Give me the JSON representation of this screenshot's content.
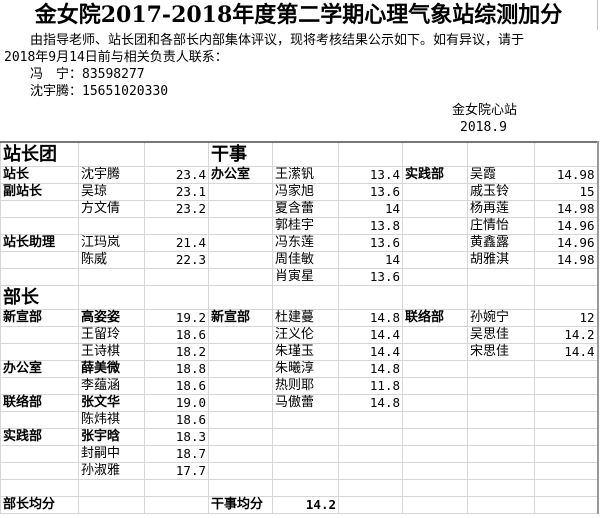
{
  "title": "金女院2017-2018年度第二学期心理气象站综测加分",
  "notice": {
    "line1": "由指导老师、站长团和各部长内部集体评议，现将考核结果公示如下。如有异议，请于",
    "line2": "2018年9月14日前与相关负责人联系：",
    "contact1": "冯　宁：83598277",
    "contact2": "沈宇腾：15651020330"
  },
  "signature": {
    "org": "金女院心站",
    "date": "2018.9"
  },
  "bold_names": [
    "高姿姿",
    "薛美微",
    "张文华",
    "张宇晗"
  ],
  "grid": {
    "rows": [
      [
        "站长团",
        "",
        "",
        "干事",
        "",
        "",
        "",
        "",
        ""
      ],
      [
        "站长",
        "沈宇腾",
        "23.4",
        "办公室",
        "王潆钒",
        "13.4",
        "实践部",
        "吴霞",
        "14.98"
      ],
      [
        "副站长",
        "吴琼",
        "23.1",
        "",
        "冯家旭",
        "13.6",
        "",
        "戚玉铃",
        "15"
      ],
      [
        "",
        "方文倩",
        "23.2",
        "",
        "夏含蕾",
        "14",
        "",
        "杨再莲",
        "14.98"
      ],
      [
        "",
        "",
        "",
        "",
        "郭桂宇",
        "13.8",
        "",
        "庄情怡",
        "14.96"
      ],
      [
        "站长助理",
        "江玛岚",
        "21.4",
        "",
        "冯东莲",
        "13.6",
        "",
        "黄鑫露",
        "14.96"
      ],
      [
        "",
        "陈威",
        "22.3",
        "",
        "周佳敏",
        "14",
        "",
        "胡雅淇",
        "14.98"
      ],
      [
        "",
        "",
        "",
        "",
        "肖寅星",
        "13.6",
        "",
        "",
        ""
      ],
      [
        "部长",
        "",
        "",
        "",
        "",
        "",
        "",
        "",
        ""
      ],
      [
        "新宣部",
        "高姿姿",
        "19.2",
        "新宣部",
        "杜建蔓",
        "14.8",
        "联络部",
        "孙婉宁",
        "12"
      ],
      [
        "",
        "王留玲",
        "18.6",
        "",
        "汪义伦",
        "14.4",
        "",
        "吴思佳",
        "14.2"
      ],
      [
        "",
        "王诗棋",
        "18.2",
        "",
        "朱瑾玉",
        "14.4",
        "",
        "宋思佳",
        "14.4"
      ],
      [
        "办公室",
        "薛美微",
        "18.8",
        "",
        "朱曦淳",
        "14.8",
        "",
        "",
        ""
      ],
      [
        "",
        "李蕴涵",
        "18.6",
        "",
        "热则耶",
        "11.8",
        "",
        "",
        ""
      ],
      [
        "联络部",
        "张文华",
        "19.0",
        "",
        "马傲蕾",
        "14.8",
        "",
        "",
        ""
      ],
      [
        "",
        "陈炜祺",
        "18.6",
        "",
        "",
        "",
        "",
        "",
        ""
      ],
      [
        "实践部",
        "张宇晗",
        "18.3",
        "",
        "",
        "",
        "",
        "",
        ""
      ],
      [
        "",
        "封嗣中",
        "18.7",
        "",
        "",
        "",
        "",
        "",
        ""
      ],
      [
        "",
        "孙淑雅",
        "17.7",
        "",
        "",
        "",
        "",
        "",
        ""
      ],
      [
        "",
        "",
        "",
        "",
        "",
        "",
        "",
        "",
        ""
      ],
      [
        "部长均分",
        "",
        "",
        "干事均分",
        "14.2",
        "",
        "",
        "",
        ""
      ]
    ]
  }
}
